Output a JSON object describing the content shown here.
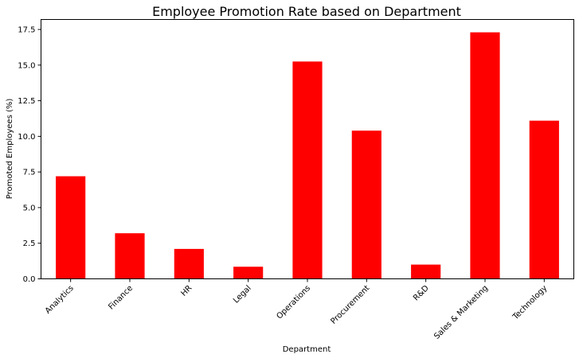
{
  "chart_data": {
    "type": "bar",
    "title": "Employee Promotion Rate based on Department",
    "xlabel": "Department",
    "ylabel": "Promoted Employees (%)",
    "categories": [
      "Analytics",
      "Finance",
      "HR",
      "Legal",
      "Operations",
      "Procurement",
      "R&D",
      "Sales & Marketing",
      "Technology"
    ],
    "values": [
      7.2,
      3.2,
      2.1,
      0.85,
      15.25,
      10.4,
      1.0,
      17.3,
      11.1
    ],
    "ylim": [
      0,
      18.2
    ],
    "yticks": [
      0.0,
      2.5,
      5.0,
      7.5,
      10.0,
      12.5,
      15.0,
      17.5
    ],
    "ytick_labels": [
      "0.0",
      "2.5",
      "5.0",
      "7.5",
      "10.0",
      "12.5",
      "15.0",
      "17.5"
    ],
    "grid": false,
    "legend": "none",
    "bar_color": "#ff0000"
  }
}
